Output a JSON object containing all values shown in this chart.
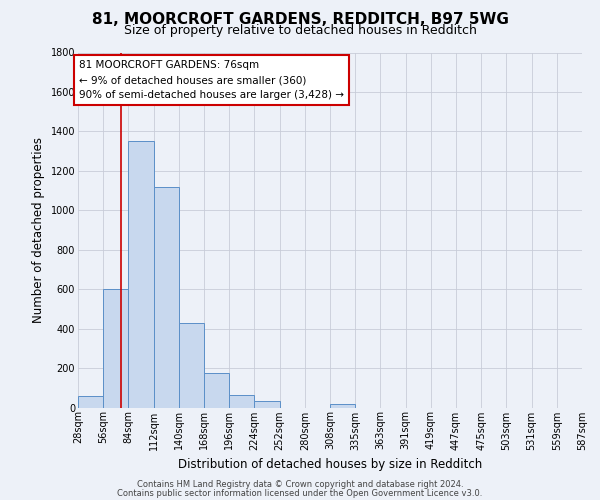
{
  "title": "81, MOORCROFT GARDENS, REDDITCH, B97 5WG",
  "subtitle": "Size of property relative to detached houses in Redditch",
  "xlabel": "Distribution of detached houses by size in Redditch",
  "ylabel": "Number of detached properties",
  "bin_labels": [
    "28sqm",
    "56sqm",
    "84sqm",
    "112sqm",
    "140sqm",
    "168sqm",
    "196sqm",
    "224sqm",
    "252sqm",
    "280sqm",
    "308sqm",
    "335sqm",
    "363sqm",
    "391sqm",
    "419sqm",
    "447sqm",
    "475sqm",
    "503sqm",
    "531sqm",
    "559sqm",
    "587sqm"
  ],
  "bin_left_edges": [
    28,
    56,
    84,
    112,
    140,
    168,
    196,
    224,
    252,
    280,
    308,
    335,
    363,
    391,
    419,
    447,
    475,
    503,
    531,
    559
  ],
  "bin_width": 28,
  "counts": [
    60,
    600,
    1350,
    1120,
    430,
    175,
    65,
    35,
    0,
    0,
    20,
    0,
    0,
    0,
    0,
    0,
    0,
    0,
    0,
    0
  ],
  "bar_color": "#c8d8ee",
  "bar_edge_color": "#5b8fc8",
  "grid_color": "#c8ccd8",
  "bg_color": "#edf1f8",
  "vline_x": 76,
  "vline_color": "#cc0000",
  "ann_line1": "81 MOORCROFT GARDENS: 76sqm",
  "ann_line2": "← 9% of detached houses are smaller (360)",
  "ann_line3": "90% of semi-detached houses are larger (3,428) →",
  "ann_box_facecolor": "white",
  "ann_box_edgecolor": "#cc0000",
  "ylim": [
    0,
    1800
  ],
  "yticks": [
    0,
    200,
    400,
    600,
    800,
    1000,
    1200,
    1400,
    1600,
    1800
  ],
  "x_min": 28,
  "x_max": 587,
  "footer1": "Contains HM Land Registry data © Crown copyright and database right 2024.",
  "footer2": "Contains public sector information licensed under the Open Government Licence v3.0.",
  "title_fontsize": 11,
  "subtitle_fontsize": 9,
  "ylabel_fontsize": 8.5,
  "xlabel_fontsize": 8.5,
  "tick_fontsize": 7,
  "footer_fontsize": 6,
  "ann_fontsize": 7.5
}
